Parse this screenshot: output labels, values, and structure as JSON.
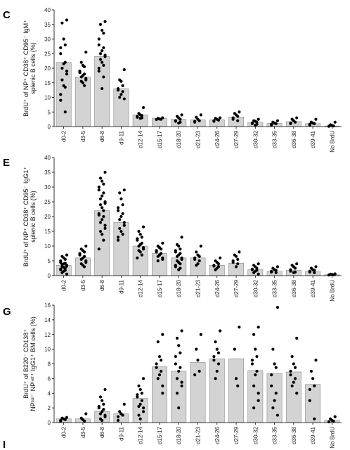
{
  "figure": {
    "next_panel_letter": "I"
  },
  "chart_data": [
    {
      "type": "bar",
      "panel": "C",
      "ylabel_lines": [
        "BrdU⁺ of NP⁺ CD38⁺ CD95⁻ IgM⁺",
        "splenic B cells (%)"
      ],
      "ylim": [
        0,
        40
      ],
      "yticks": [
        0,
        5,
        10,
        15,
        20,
        25,
        30,
        35,
        40
      ],
      "categories": [
        "d0-2",
        "d3-5",
        "d6-8",
        "d9-11",
        "d12-14",
        "d15-17",
        "d18-20",
        "d21-23",
        "d24-26",
        "d27-29",
        "d30-32",
        "d33-35",
        "d36-38",
        "d39-41",
        "No BrdU"
      ],
      "values": [
        22,
        17,
        24,
        13,
        4,
        2.8,
        2.5,
        2.3,
        2.3,
        3.3,
        1.5,
        1.1,
        1.7,
        1,
        0.2
      ],
      "points": [
        [
          36.5,
          35.5,
          30,
          28,
          27,
          25,
          22,
          21.5,
          20,
          19,
          18,
          16,
          14,
          13.5,
          11,
          9,
          5
        ],
        [
          25.5,
          22,
          21,
          20.5,
          19,
          18.5,
          18,
          17.5,
          17,
          16.5,
          16,
          15.5,
          15,
          14
        ],
        [
          36,
          35,
          33,
          32,
          30,
          28,
          27,
          26,
          25,
          24.5,
          24,
          23,
          22,
          21,
          20,
          19,
          17,
          13
        ],
        [
          19.5,
          16,
          15.5,
          14,
          13,
          12.5,
          12,
          11,
          10,
          9.5
        ],
        [
          6.5,
          4.5,
          4,
          3.8,
          3.5,
          3.2,
          3,
          2.8
        ],
        [
          3,
          2.8,
          2.6,
          2.5,
          2.4
        ],
        [
          4,
          3.5,
          3,
          2.5,
          2,
          1.8,
          1.5,
          1.2
        ],
        [
          4,
          3.2,
          2.5,
          2,
          1.8,
          1.5
        ],
        [
          3,
          2.8,
          2.5,
          2.2,
          2,
          1.8
        ],
        [
          5,
          4.5,
          4,
          3.5,
          3,
          2.5,
          2
        ],
        [
          2.5,
          2,
          1.8,
          1.5,
          1.2,
          1,
          0.8,
          0.5
        ],
        [
          2,
          1.5,
          1.2,
          1,
          0.8,
          0.5
        ],
        [
          3,
          2.5,
          2,
          1.5,
          1.2,
          1
        ],
        [
          2.5,
          1.5,
          1.2,
          1,
          0.8,
          0.5
        ],
        [
          1.5,
          0.6,
          0.4,
          0.2,
          0.1
        ]
      ]
    },
    {
      "type": "bar",
      "panel": "E",
      "ylabel_lines": [
        "BrdU⁺ of NP⁺ CD38⁺ CD95⁻ IgG1⁺",
        "splenic B cells (%)"
      ],
      "ylim": [
        0,
        40
      ],
      "yticks": [
        0,
        5,
        10,
        15,
        20,
        25,
        30,
        35,
        40
      ],
      "categories": [
        "d0-2",
        "d3-5",
        "d6-8",
        "d9-11",
        "d12-14",
        "d15-17",
        "d18-20",
        "d21-23",
        "d24-26",
        "d27-29",
        "d30-32",
        "d33-35",
        "d36-38",
        "d39-41",
        "No BrdU"
      ],
      "values": [
        3.5,
        6,
        22,
        18,
        10,
        7.5,
        6,
        6,
        3.5,
        4.2,
        2,
        1.5,
        1.8,
        1.5,
        0.3
      ],
      "points": [
        [
          7,
          6.5,
          6,
          5.5,
          5,
          4.5,
          4.2,
          4,
          3.8,
          3.5,
          3.2,
          3,
          2.8,
          2.5,
          2.2,
          2,
          1.8,
          1.5,
          1,
          0.5
        ],
        [
          10,
          9,
          8.5,
          8,
          7.5,
          7,
          6.5,
          6,
          5.5,
          5,
          4.5,
          4,
          3.5,
          3
        ],
        [
          35,
          33,
          32,
          31,
          30,
          29,
          28,
          27,
          26,
          25,
          24.5,
          24,
          23,
          22,
          21,
          20.5,
          20,
          19,
          18,
          17,
          16,
          15,
          14,
          12,
          9
        ],
        [
          29,
          28,
          26,
          24,
          23,
          22,
          21,
          20,
          19,
          18,
          17,
          16,
          15,
          14,
          13,
          12
        ],
        [
          16.5,
          15,
          14,
          13,
          12.5,
          12,
          11,
          10.5,
          10,
          9.5,
          9,
          8.5,
          8,
          7,
          6
        ],
        [
          11,
          10,
          9.5,
          9,
          8.5,
          8,
          7.5,
          7,
          6.5,
          6,
          5.5,
          5
        ],
        [
          13,
          10.5,
          10,
          9,
          8.5,
          8,
          7.5,
          7,
          6.5,
          6,
          5.5,
          5,
          4.5,
          4,
          3.5,
          3,
          2.5,
          2
        ],
        [
          10,
          8,
          7,
          6.5,
          6,
          5.5,
          5,
          4,
          3.5
        ],
        [
          6,
          5,
          4.5,
          4,
          3.5,
          3.2,
          3,
          2.5,
          2
        ],
        [
          8,
          7,
          6.5,
          5.5,
          5,
          4.5,
          4,
          3
        ],
        [
          4,
          3.5,
          3,
          2.5,
          2.2,
          2,
          1.8,
          1.5,
          1,
          0.5
        ],
        [
          3,
          2.5,
          2,
          1.8,
          1.5,
          1.2,
          1
        ],
        [
          4,
          3.5,
          3,
          2.5,
          2,
          1.5,
          1.2,
          1
        ],
        [
          3,
          2.5,
          2,
          1.8,
          1.5,
          1.2,
          1
        ],
        [
          0.6,
          0.5,
          0.4,
          0.3,
          0.2
        ]
      ]
    },
    {
      "type": "bar",
      "panel": "G",
      "ylabel_lines": [
        "BrdU⁺ of B220⁻ CD138⁺",
        "NPˢᵘʳ⁻ NPⁱⁿᵗʳ⁺ IgG1⁺ BM cells (%)"
      ],
      "ylim": [
        0,
        16
      ],
      "yticks": [
        0,
        2,
        4,
        6,
        8,
        10,
        12,
        14,
        16
      ],
      "categories": [
        "d0-2",
        "d3-5",
        "d6-8",
        "d9-11",
        "d12-14",
        "d15-17",
        "d18-20",
        "d21-23",
        "d24-26",
        "d27-29",
        "d30-32",
        "d33-35",
        "d36-38",
        "d39-41",
        "No BrdU"
      ],
      "values": [
        0.5,
        0.5,
        1.5,
        1.2,
        3.3,
        7.6,
        7,
        8.2,
        8.7,
        8.7,
        7.1,
        6.7,
        6.9,
        5.2,
        0.3
      ],
      "points": [
        [
          0.7,
          0.6,
          0.5,
          0.4,
          0.3,
          0.2
        ],
        [
          1.2,
          0.6,
          0.4,
          0.2
        ],
        [
          4.5,
          3.5,
          3,
          2.5,
          2.2,
          2,
          1.8,
          1.5,
          1.2,
          1,
          0.8,
          0.5,
          0.3
        ],
        [
          2.5,
          1.5,
          1.2,
          1,
          0.8,
          0.3
        ],
        [
          6,
          5,
          4.5,
          4,
          3.8,
          3.5,
          3,
          2.5,
          2.2,
          2,
          1.5,
          1,
          0.5
        ],
        [
          12,
          11,
          9,
          8.5,
          8,
          7.5,
          7,
          6.5,
          6,
          5,
          4
        ],
        [
          12.5,
          11.5,
          10.5,
          9.5,
          9,
          8,
          7.5,
          7,
          6,
          5.5,
          5,
          4,
          2
        ],
        [
          12,
          10,
          8.5,
          7,
          6.5
        ],
        [
          12.5,
          11,
          10,
          9.5,
          9,
          8.5,
          8,
          7,
          6
        ],
        [
          13,
          10,
          6,
          5
        ],
        [
          13,
          12,
          10,
          9,
          8.5,
          8,
          7,
          6.5,
          5,
          4,
          3,
          2
        ],
        [
          15.7,
          10,
          8,
          7.5,
          6.5,
          5,
          4,
          3,
          2,
          1
        ],
        [
          11.5,
          9,
          8,
          7.5,
          7,
          6.5,
          6,
          5.5,
          5,
          4
        ],
        [
          8.5,
          7,
          6,
          5,
          4.5,
          3,
          0.5
        ],
        [
          0.8,
          0.5,
          0.3,
          0.2,
          0.1
        ]
      ]
    }
  ]
}
